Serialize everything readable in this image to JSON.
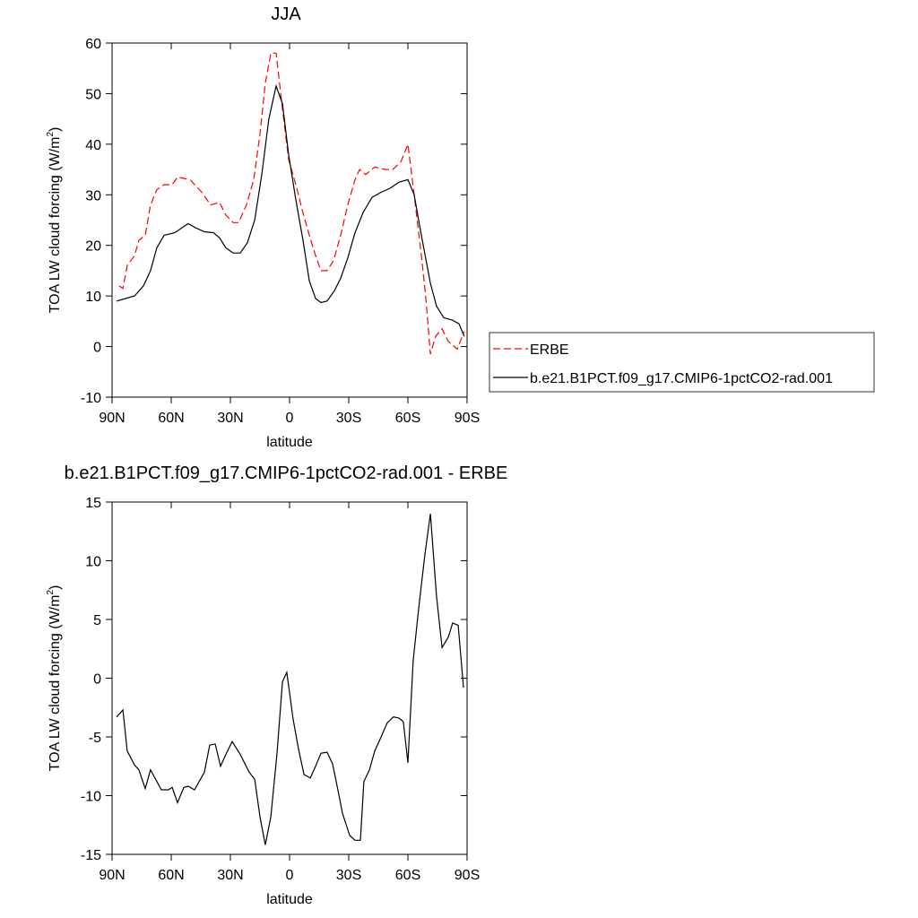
{
  "chart_data": [
    {
      "type": "line",
      "title": "JJA",
      "xlabel": "latitude",
      "ylabel": {
        "text": "TOA LW cloud forcing (W/m",
        "sup": "2",
        "end": ")"
      },
      "xlim": [
        90,
        -90
      ],
      "xticks": [
        {
          "value": 90,
          "label": "90N"
        },
        {
          "value": 60,
          "label": "60N"
        },
        {
          "value": 30,
          "label": "30N"
        },
        0,
        {
          "value": -30,
          "label": "30S"
        },
        {
          "value": -60,
          "label": "60S"
        },
        {
          "value": -90,
          "label": "90S"
        }
      ],
      "ylim": [
        -10,
        60
      ],
      "yticks": [
        -10,
        0,
        10,
        20,
        30,
        40,
        50,
        60
      ],
      "legend": "right",
      "series": [
        {
          "name": "ERBE",
          "color": "#ff0000",
          "dash": true,
          "x": [
            86.4,
            84.5,
            82.3,
            78.6,
            76.4,
            73.2,
            70.5,
            67.3,
            63.6,
            59.5,
            56.8,
            50.5,
            44.5,
            40,
            35.5,
            32.3,
            28.6,
            25.9,
            21.8,
            18.2,
            15,
            12.3,
            9.5,
            6.8,
            3.6,
            0.5,
            -3.2,
            -6.4,
            -10,
            -13.2,
            -15.9,
            -19,
            -22.3,
            -25.9,
            -29.5,
            -33.2,
            -35.5,
            -38.6,
            -43.2,
            -48.6,
            -52.3,
            -56.4,
            -60,
            -63.2,
            -66.8,
            -69,
            -71.4,
            -74,
            -77.3,
            -80.5,
            -85,
            -88.6
          ],
          "values": [
            12,
            11.5,
            16,
            18,
            21,
            22,
            28,
            31,
            32,
            32,
            33.5,
            33,
            30.5,
            28,
            28.5,
            26,
            24.5,
            24.5,
            28,
            33,
            42,
            52,
            58,
            58,
            47,
            37,
            32,
            27,
            22,
            18,
            15,
            15,
            17,
            22,
            28,
            33,
            35,
            34,
            35.5,
            35,
            35,
            36.5,
            40,
            30,
            18,
            10,
            -1.5,
            2,
            3.5,
            1,
            -0.5,
            3
          ]
        },
        {
          "name": "b.e21.B1PCT.f09_g17.CMIP6-1pctCO2-rad.001",
          "color": "#000000",
          "dash": false,
          "x": [
            87.7,
            83.2,
            78.6,
            74.1,
            70.5,
            67.3,
            63.6,
            58.2,
            54.5,
            51.4,
            47.7,
            43.2,
            38.6,
            35.5,
            32.3,
            28.6,
            25,
            21.4,
            17.7,
            14.1,
            10.5,
            6.8,
            3.6,
            0.5,
            -3.2,
            -6.8,
            -10,
            -13.2,
            -15.9,
            -19,
            -22.7,
            -25.9,
            -29.5,
            -33.2,
            -37.3,
            -41.8,
            -46.4,
            -50.9,
            -55.5,
            -60,
            -63.2,
            -66.8,
            -71.4,
            -74.5,
            -78.2,
            -82.7,
            -85.9,
            -88.6
          ],
          "values": [
            9,
            9.5,
            10,
            12,
            15,
            19.5,
            22,
            22.5,
            23.5,
            24.3,
            23.5,
            22.7,
            22.5,
            21.5,
            19.5,
            18.5,
            18.5,
            20.5,
            25,
            34,
            45,
            51.5,
            48,
            38,
            29,
            21,
            13,
            9.5,
            8.7,
            9,
            11,
            13.5,
            17.5,
            22.5,
            26.5,
            29.5,
            30.5,
            31.3,
            32.5,
            33,
            30,
            22,
            12.5,
            8,
            5.7,
            5.2,
            4.5,
            2
          ]
        }
      ]
    },
    {
      "type": "line",
      "title": "b.e21.B1PCT.f09_g17.CMIP6-1pctCO2-rad.001 - ERBE",
      "xlabel": "latitude",
      "ylabel": {
        "text": "TOA LW cloud forcing (W/m",
        "sup": "2",
        "end": ")"
      },
      "xlim": [
        90,
        -90
      ],
      "xticks": [
        {
          "value": 90,
          "label": "90N"
        },
        {
          "value": 60,
          "label": "60N"
        },
        {
          "value": 30,
          "label": "30N"
        },
        0,
        {
          "value": -30,
          "label": "30S"
        },
        {
          "value": -60,
          "label": "60S"
        },
        {
          "value": -90,
          "label": "90S"
        }
      ],
      "ylim": [
        -15,
        15
      ],
      "yticks": [
        -15,
        -10,
        -5,
        0,
        5,
        10,
        15
      ],
      "series": [
        {
          "color": "#000000",
          "dash": false,
          "x": [
            87.7,
            84.5,
            82.3,
            78.6,
            76.4,
            73.2,
            70.5,
            65,
            61.4,
            59.5,
            56.8,
            53.6,
            51.4,
            48.2,
            43.2,
            40.5,
            37.7,
            35,
            32.3,
            29.1,
            25,
            20.5,
            17.7,
            15,
            12.3,
            9.5,
            6.4,
            3.6,
            1.4,
            -1.8,
            -4.5,
            -7.3,
            -10.5,
            -13.2,
            -15.9,
            -19,
            -21.8,
            -24.5,
            -26.8,
            -30.5,
            -33.2,
            -35.9,
            -37.7,
            -40.5,
            -43.2,
            -46.4,
            -49.5,
            -52.7,
            -55.5,
            -57.7,
            -60,
            -62.7,
            -65.5,
            -68.6,
            -71.4,
            -74.5,
            -77.3,
            -80.5,
            -82.7,
            -85.5,
            -88.2
          ],
          "values": [
            -3.3,
            -2.7,
            -6.2,
            -7.4,
            -7.8,
            -9.4,
            -7.8,
            -9.5,
            -9.5,
            -9.3,
            -10.6,
            -9.3,
            -9.2,
            -9.5,
            -8,
            -5.7,
            -5.6,
            -7.5,
            -6.5,
            -5.4,
            -6.5,
            -8,
            -8.6,
            -11.8,
            -14.2,
            -11.8,
            -6.5,
            -0.3,
            0.5,
            -3.5,
            -6,
            -8.2,
            -8.5,
            -7.5,
            -6.4,
            -6.3,
            -7.3,
            -9.5,
            -11.5,
            -13.4,
            -13.8,
            -13.8,
            -8.8,
            -7.8,
            -6.2,
            -5,
            -3.8,
            -3.3,
            -3.4,
            -3.7,
            -7.2,
            1.5,
            6,
            10.5,
            14,
            7,
            2.6,
            3.5,
            4.7,
            4.5,
            -0.8
          ]
        }
      ]
    }
  ]
}
